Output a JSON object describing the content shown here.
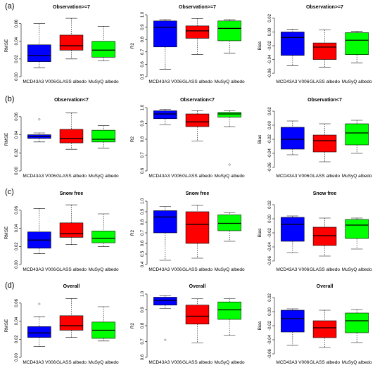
{
  "colors": {
    "MCD43A3 V006": "#0000ff",
    "GLASS albedo": "#ff0000",
    "MuSyQ albedo": "#00ff00"
  },
  "row_labels": [
    "(a)",
    "(b)",
    "(c)",
    "(d)"
  ],
  "chart_data": [
    {
      "type": "box",
      "panel": "a1",
      "title": "Observation>=7",
      "ylabel": "RMSE",
      "ylim": [
        0,
        0.07
      ],
      "yticks": [
        0,
        0.02,
        0.04,
        0.06
      ],
      "ytick_labels": [
        "0.00",
        "0.02",
        "0.04",
        "0.06"
      ],
      "categories": [
        "MCD43A3 V006",
        "GLASS albedo",
        "MuSyQ albedo"
      ],
      "boxes": [
        {
          "min": 0.01,
          "q1": 0.017,
          "median": 0.024,
          "q3": 0.036,
          "max": 0.06,
          "outliers": []
        },
        {
          "min": 0.02,
          "q1": 0.03,
          "median": 0.035,
          "q3": 0.047,
          "max": 0.066,
          "outliers": []
        },
        {
          "min": 0.018,
          "q1": 0.022,
          "median": 0.03,
          "q3": 0.04,
          "max": 0.057,
          "outliers": []
        }
      ]
    },
    {
      "type": "box",
      "panel": "a2",
      "title": "Observation>=7",
      "ylabel": "R2",
      "ylim": [
        0.5,
        1.0
      ],
      "yticks": [
        0.5,
        0.6,
        0.7,
        0.8,
        0.9,
        1.0
      ],
      "ytick_labels": [
        "0.5",
        "0.6",
        "0.7",
        "0.8",
        "0.9",
        "1.0"
      ],
      "categories": [
        "MCD43A3 V006",
        "GLASS albedo",
        "MuSyQ albedo"
      ],
      "boxes": [
        {
          "min": 0.56,
          "q1": 0.74,
          "median": 0.9,
          "q3": 0.95,
          "max": 0.96,
          "outliers": []
        },
        {
          "min": 0.68,
          "q1": 0.81,
          "median": 0.87,
          "q3": 0.91,
          "max": 0.97,
          "outliers": []
        },
        {
          "min": 0.69,
          "q1": 0.79,
          "median": 0.89,
          "q3": 0.95,
          "max": 0.96,
          "outliers": []
        }
      ]
    },
    {
      "type": "box",
      "panel": "a3",
      "title": "Observation>=7",
      "ylabel": "Bias",
      "ylim": [
        -0.065,
        0.025
      ],
      "yticks": [
        -0.06,
        -0.04,
        -0.02,
        0.0,
        0.02
      ],
      "ytick_labels": [
        "-0.06",
        "-0.04",
        "-0.02",
        "0.00",
        "0.02"
      ],
      "categories": [
        "MCD43A3 V006",
        "GLASS albedo",
        "MuSyQ albedo"
      ],
      "boxes": [
        {
          "min": -0.049,
          "q1": -0.034,
          "median": -0.008,
          "q3": 0.0,
          "max": 0.004,
          "outliers": []
        },
        {
          "min": -0.051,
          "q1": -0.04,
          "median": -0.022,
          "q3": -0.016,
          "max": 0.003,
          "outliers": []
        },
        {
          "min": -0.045,
          "q1": -0.033,
          "median": -0.012,
          "q3": -0.001,
          "max": 0.001,
          "outliers": []
        }
      ]
    },
    {
      "type": "box",
      "panel": "b1",
      "title": "Observation<7",
      "ylabel": "RMSE",
      "ylim": [
        0,
        0.07
      ],
      "yticks": [
        0,
        0.02,
        0.04,
        0.06
      ],
      "ytick_labels": [
        "0.00",
        "0.02",
        "0.04",
        "0.06"
      ],
      "categories": [
        "MCD43A3 V006",
        "GLASS albedo",
        "MuSyQ albedo"
      ],
      "boxes": [
        {
          "min": 0.032,
          "q1": 0.036,
          "median": 0.038,
          "q3": 0.04,
          "max": 0.042,
          "outliers": [
            0.057
          ]
        },
        {
          "min": 0.024,
          "q1": 0.031,
          "median": 0.036,
          "q3": 0.046,
          "max": 0.064,
          "outliers": []
        },
        {
          "min": 0.025,
          "q1": 0.032,
          "median": 0.035,
          "q3": 0.045,
          "max": 0.05,
          "outliers": []
        }
      ]
    },
    {
      "type": "box",
      "panel": "b2",
      "title": "Observation<7",
      "ylabel": "R2",
      "ylim": [
        0.6,
        1.0
      ],
      "yticks": [
        0.6,
        0.7,
        0.8,
        0.9,
        1.0
      ],
      "ytick_labels": [
        "0.6",
        "0.7",
        "0.8",
        "0.9",
        "1.0"
      ],
      "categories": [
        "MCD43A3 V006",
        "GLASS albedo",
        "MuSyQ albedo"
      ],
      "boxes": [
        {
          "min": 0.89,
          "q1": 0.93,
          "median": 0.96,
          "q3": 0.98,
          "max": 0.99,
          "outliers": []
        },
        {
          "min": 0.79,
          "q1": 0.88,
          "median": 0.91,
          "q3": 0.96,
          "max": 0.98,
          "outliers": []
        },
        {
          "min": 0.88,
          "q1": 0.94,
          "median": 0.96,
          "q3": 0.97,
          "max": 0.98,
          "outliers": [
            0.64
          ]
        }
      ]
    },
    {
      "type": "box",
      "panel": "b3",
      "title": "Observation<7",
      "ylabel": "Bias",
      "ylim": [
        -0.065,
        0.025
      ],
      "yticks": [
        -0.06,
        -0.04,
        -0.02,
        0.0,
        0.02
      ],
      "ytick_labels": [
        "-0.06",
        "-0.04",
        "-0.02",
        "0.00",
        "0.02"
      ],
      "categories": [
        "MCD43A3 V006",
        "GLASS albedo",
        "MuSyQ albedo"
      ],
      "boxes": [
        {
          "min": -0.042,
          "q1": -0.034,
          "median": -0.02,
          "q3": -0.003,
          "max": 0.006,
          "outliers": []
        },
        {
          "min": -0.052,
          "q1": -0.038,
          "median": -0.022,
          "q3": -0.014,
          "max": 0.002,
          "outliers": []
        },
        {
          "min": -0.04,
          "q1": -0.028,
          "median": -0.011,
          "q3": 0.002,
          "max": 0.007,
          "outliers": []
        }
      ]
    },
    {
      "type": "box",
      "panel": "c1",
      "title": "Snow free",
      "ylabel": "RMSE",
      "ylim": [
        0,
        0.07
      ],
      "yticks": [
        0,
        0.02,
        0.04,
        0.06
      ],
      "ytick_labels": [
        "0.00",
        "0.02",
        "0.04",
        "0.06"
      ],
      "categories": [
        "MCD43A3 V006",
        "GLASS albedo",
        "MuSyQ albedo"
      ],
      "boxes": [
        {
          "min": 0.012,
          "q1": 0.018,
          "median": 0.027,
          "q3": 0.036,
          "max": 0.062,
          "outliers": []
        },
        {
          "min": 0.022,
          "q1": 0.03,
          "median": 0.034,
          "q3": 0.046,
          "max": 0.066,
          "outliers": []
        },
        {
          "min": 0.02,
          "q1": 0.024,
          "median": 0.029,
          "q3": 0.037,
          "max": 0.056,
          "outliers": []
        }
      ]
    },
    {
      "type": "box",
      "panel": "c2",
      "title": "Snow free",
      "ylabel": "R2",
      "ylim": [
        0.4,
        1.0
      ],
      "yticks": [
        0.4,
        0.5,
        0.6,
        0.7,
        0.8,
        0.9,
        1.0
      ],
      "ytick_labels": [
        "0.4",
        "0.5",
        "0.6",
        "0.7",
        "0.8",
        "0.9",
        "1.0"
      ],
      "categories": [
        "MCD43A3 V006",
        "GLASS albedo",
        "MuSyQ albedo"
      ],
      "boxes": [
        {
          "min": 0.44,
          "q1": 0.7,
          "median": 0.85,
          "q3": 0.91,
          "max": 0.95,
          "outliers": []
        },
        {
          "min": 0.46,
          "q1": 0.6,
          "median": 0.78,
          "q3": 0.9,
          "max": 0.96,
          "outliers": []
        },
        {
          "min": 0.62,
          "q1": 0.72,
          "median": 0.79,
          "q3": 0.87,
          "max": 0.89,
          "outliers": []
        }
      ]
    },
    {
      "type": "box",
      "panel": "c3",
      "title": "Snow free",
      "ylabel": "Bias",
      "ylim": [
        -0.065,
        0.025
      ],
      "yticks": [
        -0.06,
        -0.04,
        -0.02,
        0.0,
        0.02
      ],
      "ytick_labels": [
        "-0.06",
        "-0.04",
        "-0.02",
        "0.00",
        "0.02"
      ],
      "categories": [
        "MCD43A3 V006",
        "GLASS albedo",
        "MuSyQ albedo"
      ],
      "boxes": [
        {
          "min": -0.048,
          "q1": -0.032,
          "median": -0.008,
          "q3": 0.002,
          "max": 0.004,
          "outliers": []
        },
        {
          "min": -0.053,
          "q1": -0.038,
          "median": -0.024,
          "q3": -0.012,
          "max": 0.001,
          "outliers": []
        },
        {
          "min": -0.043,
          "q1": -0.028,
          "median": -0.009,
          "q3": -0.001,
          "max": 0.001,
          "outliers": []
        }
      ]
    },
    {
      "type": "box",
      "panel": "d1",
      "title": "Overall",
      "ylabel": "RMSE",
      "ylim": [
        0,
        0.07
      ],
      "yticks": [
        0,
        0.02,
        0.04,
        0.06
      ],
      "ytick_labels": [
        "0.00",
        "0.02",
        "0.04",
        "0.06"
      ],
      "categories": [
        "MCD43A3 V006",
        "GLASS albedo",
        "MuSyQ albedo"
      ],
      "boxes": [
        {
          "min": 0.012,
          "q1": 0.022,
          "median": 0.027,
          "q3": 0.034,
          "max": 0.045,
          "outliers": [
            0.059
          ]
        },
        {
          "min": 0.022,
          "q1": 0.03,
          "median": 0.035,
          "q3": 0.046,
          "max": 0.065,
          "outliers": []
        },
        {
          "min": 0.018,
          "q1": 0.021,
          "median": 0.03,
          "q3": 0.039,
          "max": 0.056,
          "outliers": []
        }
      ]
    },
    {
      "type": "box",
      "panel": "d2",
      "title": "Overall",
      "ylabel": "R2",
      "ylim": [
        0.6,
        1.0
      ],
      "yticks": [
        0.6,
        0.7,
        0.8,
        0.9,
        1.0
      ],
      "ytick_labels": [
        "0.6",
        "0.7",
        "0.8",
        "0.9",
        "1.0"
      ],
      "categories": [
        "MCD43A3 V006",
        "GLASS albedo",
        "MuSyQ albedo"
      ],
      "boxes": [
        {
          "min": 0.91,
          "q1": 0.93,
          "median": 0.96,
          "q3": 0.98,
          "max": 0.99,
          "outliers": [
            0.71
          ]
        },
        {
          "min": 0.69,
          "q1": 0.81,
          "median": 0.86,
          "q3": 0.93,
          "max": 0.97,
          "outliers": []
        },
        {
          "min": 0.74,
          "q1": 0.84,
          "median": 0.9,
          "q3": 0.95,
          "max": 0.97,
          "outliers": []
        }
      ]
    },
    {
      "type": "box",
      "panel": "d3",
      "title": "Overall",
      "ylabel": "Bias",
      "ylim": [
        -0.065,
        0.025
      ],
      "yticks": [
        -0.06,
        -0.04,
        -0.02,
        0.0,
        0.02
      ],
      "ytick_labels": [
        "-0.06",
        "-0.04",
        "-0.02",
        "0.00",
        "0.02"
      ],
      "categories": [
        "MCD43A3 V006",
        "GLASS albedo",
        "MuSyQ albedo"
      ],
      "boxes": [
        {
          "min": -0.048,
          "q1": -0.029,
          "median": -0.01,
          "q3": 0.002,
          "max": 0.004,
          "outliers": []
        },
        {
          "min": -0.051,
          "q1": -0.037,
          "median": -0.023,
          "q3": -0.013,
          "max": 0.002,
          "outliers": []
        },
        {
          "min": -0.044,
          "q1": -0.03,
          "median": -0.013,
          "q3": -0.002,
          "max": 0.003,
          "outliers": []
        }
      ]
    }
  ]
}
